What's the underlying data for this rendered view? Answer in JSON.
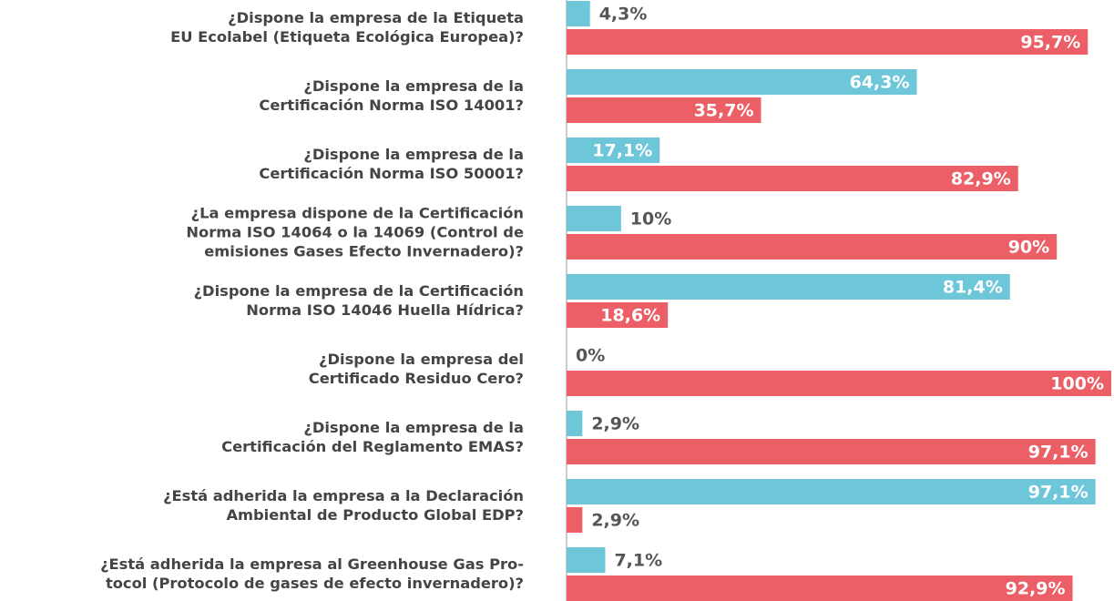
{
  "chart_data": {
    "type": "bar",
    "orientation": "horizontal",
    "categories": [
      [
        "¿Dispone la empresa de la Etiqueta",
        "EU Ecolabel (Etiqueta Ecológica Europea)?"
      ],
      [
        "¿Dispone la empresa de la",
        "Certificación Norma ISO 14001?"
      ],
      [
        "¿Dispone la empresa de la",
        "Certificación Norma ISO 50001?"
      ],
      [
        "¿La empresa dispone de la Certificación",
        "Norma ISO 14064 o la 14069 (Control de",
        "emisiones Gases Efecto Invernadero)?"
      ],
      [
        "¿Dispone la empresa de la Certificación",
        "Norma ISO 14046 Huella Hídrica?"
      ],
      [
        "¿Dispone la empresa del",
        "Certificado Residuo Cero?"
      ],
      [
        "¿Dispone la empresa de la",
        "Certificación del Reglamento EMAS?"
      ],
      [
        "¿Está adherida la empresa a la Declaración",
        "Ambiental de Producto Global EDP?"
      ],
      [
        "¿Está adherida la empresa al Greenhouse Gas Pro-",
        "tocol (Protocolo de gases de efecto invernadero)?"
      ]
    ],
    "series": [
      {
        "color": "#6ec6d9",
        "values": [
          4.3,
          64.3,
          17.1,
          10,
          81.4,
          0,
          2.9,
          97.1,
          7.1
        ],
        "value_labels": [
          "4,3%",
          "64,3%",
          "17,1%",
          "10%",
          "81,4%",
          "0%",
          "2,9%",
          "97,1%",
          "7,1%"
        ]
      },
      {
        "color": "#ec5f67",
        "values": [
          95.7,
          35.7,
          82.9,
          90,
          18.6,
          100,
          97.1,
          2.9,
          92.9
        ],
        "value_labels": [
          "95,7%",
          "35,7%",
          "82,9%",
          "90%",
          "18,6%",
          "100%",
          "97,1%",
          "2,9%",
          "92,9%"
        ]
      }
    ],
    "xlim": [
      0,
      100
    ]
  }
}
